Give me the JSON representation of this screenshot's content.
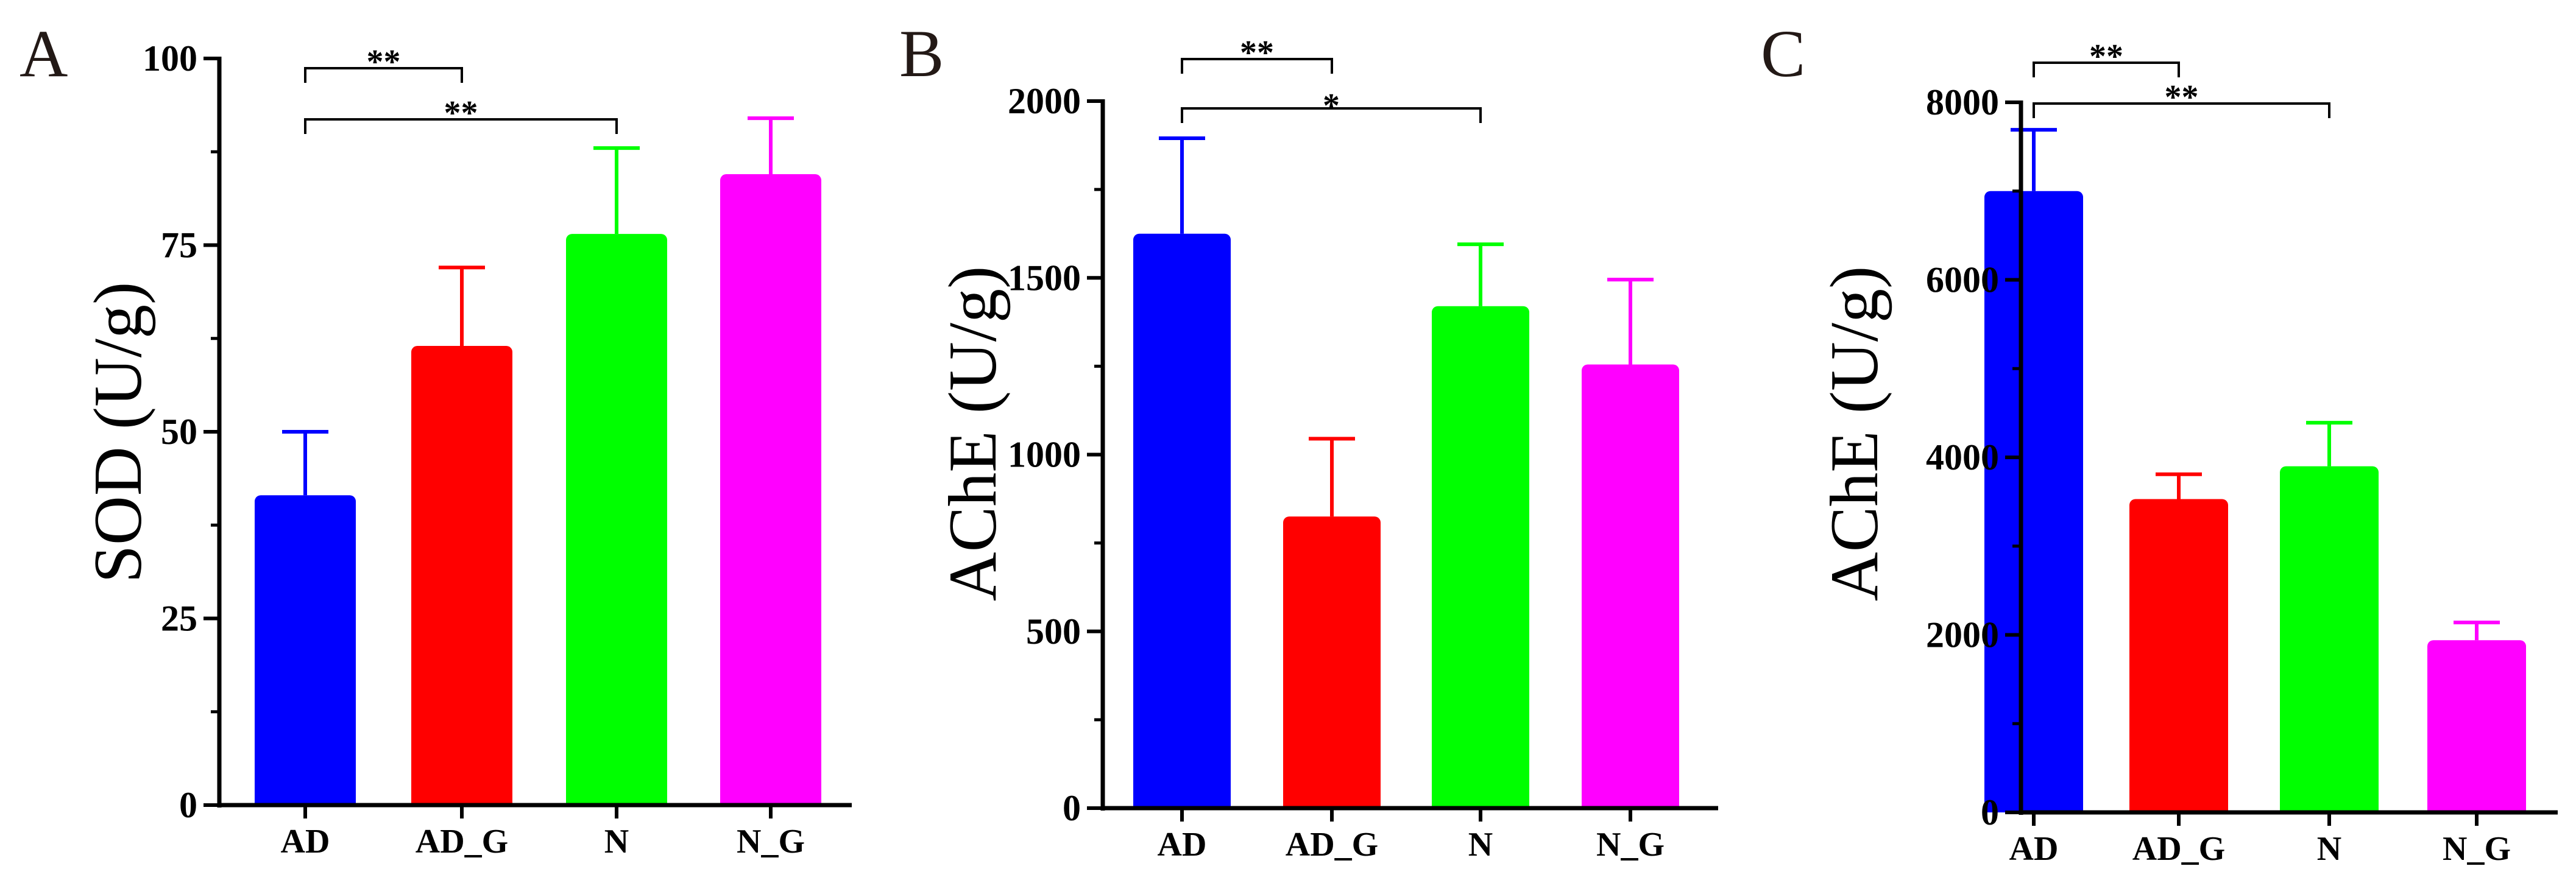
{
  "chart_data": [
    {
      "type": "bar",
      "panel_label": "A",
      "ylabel": "SOD (U/g)",
      "xlabel": "",
      "categories": [
        "AD",
        "AD_G",
        "N",
        "N_G"
      ],
      "values": [
        41.5,
        61.5,
        76.5,
        84.5
      ],
      "error_upper": [
        50,
        72,
        88,
        92
      ],
      "colors": [
        "#0000ff",
        "#ff0000",
        "#00ff00",
        "#ff00ff"
      ],
      "ylim": [
        0,
        100
      ],
      "yticks": [
        0,
        25,
        50,
        75,
        100
      ],
      "ytick_labels": [
        "0",
        "25",
        "50",
        "75",
        "100"
      ],
      "significance": [
        {
          "from": "AD",
          "to": "AD_G",
          "label": "**"
        },
        {
          "from": "AD",
          "to": "N",
          "label": "**"
        }
      ]
    },
    {
      "type": "bar",
      "panel_label": "B",
      "ylabel": "AChE (U/g)",
      "xlabel": "",
      "categories": [
        "AD",
        "AD_G",
        "N",
        "N_G"
      ],
      "values": [
        1625,
        825,
        1420,
        1255
      ],
      "error_upper": [
        1895,
        1045,
        1595,
        1495
      ],
      "colors": [
        "#0000ff",
        "#ff0000",
        "#00ff00",
        "#ff00ff"
      ],
      "ylim": [
        0,
        2000
      ],
      "yticks": [
        0,
        500,
        1000,
        1500,
        2000
      ],
      "ytick_labels": [
        "0",
        "500",
        "1000",
        "1500",
        "2000"
      ],
      "significance": [
        {
          "from": "AD",
          "to": "AD_G",
          "label": "**"
        },
        {
          "from": "AD",
          "to": "N",
          "label": "*"
        }
      ]
    },
    {
      "type": "bar",
      "panel_label": "C",
      "ylabel": "AChE (U/g)",
      "xlabel": "",
      "categories": [
        "AD",
        "AD_G",
        "N",
        "N_G"
      ],
      "values": [
        7000,
        3530,
        3900,
        1940
      ],
      "error_upper": [
        7690,
        3810,
        4390,
        2140
      ],
      "colors": [
        "#0000ff",
        "#ff0000",
        "#00ff00",
        "#ff00ff"
      ],
      "ylim": [
        0,
        8000
      ],
      "yticks": [
        0,
        2000,
        4000,
        6000,
        8000
      ],
      "ytick_labels": [
        "0",
        "2000",
        "4000",
        "6000",
        "8000"
      ],
      "significance": [
        {
          "from": "AD",
          "to": "AD_G",
          "label": "**"
        },
        {
          "from": "AD",
          "to": "N",
          "label": "**"
        }
      ]
    }
  ]
}
